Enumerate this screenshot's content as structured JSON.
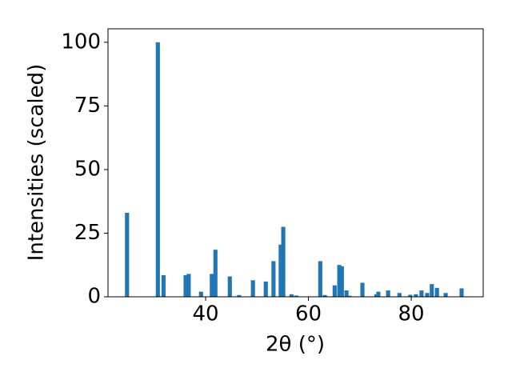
{
  "chart_data": {
    "type": "bar",
    "xlabel": "2θ (°)",
    "ylabel": "Intensities (scaled)",
    "x": [
      24.7,
      30.7,
      31.8,
      36.1,
      36.7,
      39.1,
      41.2,
      41.9,
      44.7,
      46.5,
      49.2,
      51.7,
      53.2,
      54.6,
      55.1,
      56.7,
      57.6,
      62.3,
      63.2,
      65.1,
      66.0,
      66.5,
      67.4,
      68.0,
      70.5,
      73.2,
      73.6,
      75.5,
      77.7,
      79.8,
      80.9,
      82.0,
      83.1,
      84.0,
      85.0,
      86.7,
      89.8
    ],
    "values": [
      33,
      100,
      8.5,
      8.5,
      9,
      2,
      9,
      18.5,
      8,
      0.7,
      6.5,
      6,
      14,
      20.5,
      27.5,
      1,
      0.5,
      14,
      0.7,
      4.5,
      12.5,
      12,
      2.5,
      0.4,
      5.5,
      1,
      2,
      2.5,
      1.5,
      0.8,
      1,
      2.5,
      1.5,
      5,
      3.5,
      1.5,
      3.3
    ],
    "color": "#1f77b4",
    "xlim": [
      21,
      94
    ],
    "ylim": [
      0,
      105.3
    ],
    "xticks": [
      40,
      60,
      80
    ],
    "yticks": [
      0,
      25,
      50,
      75,
      100
    ],
    "grid": false
  }
}
